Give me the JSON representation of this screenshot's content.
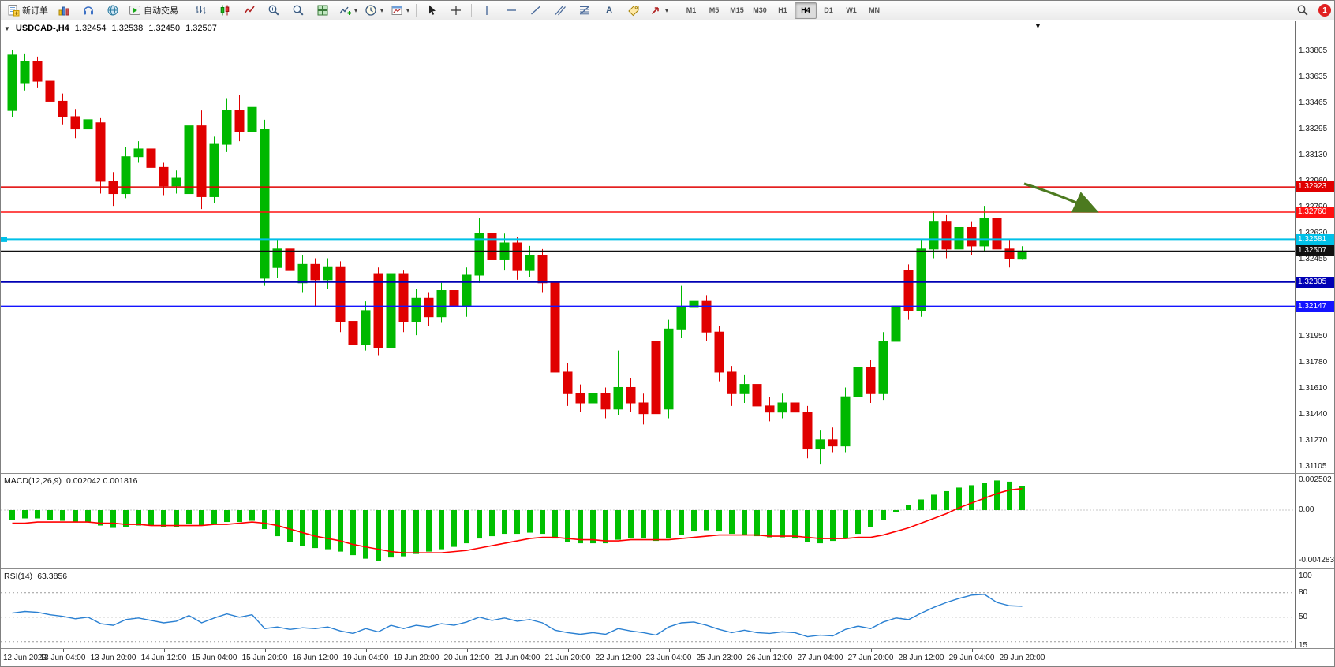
{
  "toolbar": {
    "new_order_label": "新订单",
    "auto_trading_label": "自动交易",
    "timeframes": [
      "M1",
      "M5",
      "M15",
      "M30",
      "H1",
      "H4",
      "D1",
      "W1",
      "MN"
    ],
    "active_timeframe": "H4",
    "notification_count": "1"
  },
  "icons": {
    "caret": "▾",
    "dropdown_triangle": "▼",
    "chart_shift_marker": "▼",
    "text_tool": "A"
  },
  "chart": {
    "symbol_title": "USDCAD-,H4",
    "ohlc": {
      "open": "1.32454",
      "high": "1.32538",
      "low": "1.32450",
      "close": "1.32507"
    },
    "up_color": "#00b800",
    "down_color": "#e00000",
    "price_axis_labels": [
      "1.33805",
      "1.33635",
      "1.33465",
      "1.33295",
      "1.33130",
      "1.32960",
      "1.32790",
      "1.32620",
      "1.32455",
      "1.32285",
      "1.32115",
      "1.31950",
      "1.31780",
      "1.31610",
      "1.31440",
      "1.31270",
      "1.31105"
    ],
    "hlines": [
      {
        "price": 1.32923,
        "label": "1.32923",
        "color": "#e00000",
        "width": 1.5
      },
      {
        "price": 1.3276,
        "label": "1.32760",
        "color": "#ff1010",
        "width": 1.5
      },
      {
        "price": 1.32581,
        "label": "1.32581",
        "color": "#00c0e8",
        "width": 3
      },
      {
        "price": 1.32507,
        "label": "1.32507",
        "color": "#101010",
        "width": 1.2,
        "current": true
      },
      {
        "price": 1.32305,
        "label": "1.32305",
        "color": "#0000b4",
        "width": 2
      },
      {
        "price": 1.32147,
        "label": "1.32147",
        "color": "#1414ff",
        "width": 2
      }
    ]
  },
  "indicators": {
    "macd": {
      "name": "MACD(12,26,9)",
      "values": "0.002042 0.001816",
      "scale": [
        "0.002502",
        "0.00",
        "-0.004283"
      ],
      "histogram_color": "#00c000",
      "signal_color": "#ff0000"
    },
    "rsi": {
      "name": "RSI(14)",
      "value": "63.3856",
      "scale": [
        "100",
        "80",
        "50",
        "15"
      ],
      "levels": [
        80,
        50,
        20
      ],
      "line_color": "#2a80d2"
    }
  },
  "annotations": {
    "arrow_color": "#4c7a1f"
  },
  "chart_data": {
    "type": "candlestick",
    "symbol": "USDCAD",
    "timeframe": "H4",
    "ohlc_current": {
      "open": 1.32454,
      "high": 1.32538,
      "low": 1.3245,
      "close": 1.32507
    },
    "time_labels": [
      "12 Jun 2023",
      "13 Jun 04:00",
      "13 Jun 20:00",
      "14 Jun 12:00",
      "15 Jun 04:00",
      "15 Jun 20:00",
      "16 Jun 12:00",
      "19 Jun 04:00",
      "19 Jun 20:00",
      "20 Jun 12:00",
      "21 Jun 04:00",
      "21 Jun 20:00",
      "22 Jun 12:00",
      "23 Jun 04:00",
      "25 Jun 23:00",
      "26 Jun 12:00",
      "27 Jun 04:00",
      "27 Jun 20:00",
      "28 Jun 12:00",
      "29 Jun 04:00",
      "29 Jun 20:00"
    ],
    "candles": [
      [
        1.3342,
        1.3381,
        1.3338,
        1.3378
      ],
      [
        1.336,
        1.3379,
        1.3355,
        1.3374
      ],
      [
        1.3374,
        1.3377,
        1.3357,
        1.3361
      ],
      [
        1.3361,
        1.3364,
        1.3343,
        1.3348
      ],
      [
        1.3348,
        1.3353,
        1.3333,
        1.3338
      ],
      [
        1.3338,
        1.3343,
        1.3324,
        1.333
      ],
      [
        1.333,
        1.3341,
        1.3326,
        1.3336
      ],
      [
        1.3334,
        1.3337,
        1.3288,
        1.3296
      ],
      [
        1.3296,
        1.3302,
        1.328,
        1.3288
      ],
      [
        1.3288,
        1.3318,
        1.3285,
        1.3312
      ],
      [
        1.3312,
        1.3322,
        1.3308,
        1.3317
      ],
      [
        1.3317,
        1.332,
        1.33,
        1.3305
      ],
      [
        1.3305,
        1.3308,
        1.3287,
        1.3293
      ],
      [
        1.3293,
        1.3303,
        1.3288,
        1.3298
      ],
      [
        1.3288,
        1.3338,
        1.3284,
        1.3332
      ],
      [
        1.3332,
        1.3342,
        1.3278,
        1.3286
      ],
      [
        1.3286,
        1.3325,
        1.3282,
        1.332
      ],
      [
        1.332,
        1.335,
        1.3315,
        1.3342
      ],
      [
        1.3342,
        1.3352,
        1.3322,
        1.3328
      ],
      [
        1.3328,
        1.335,
        1.3324,
        1.3344
      ],
      [
        1.3233,
        1.3336,
        1.3228,
        1.333
      ],
      [
        1.324,
        1.3258,
        1.3233,
        1.3252
      ],
      [
        1.3252,
        1.3256,
        1.3228,
        1.3238
      ],
      [
        1.323,
        1.3248,
        1.3224,
        1.3242
      ],
      [
        1.3242,
        1.3246,
        1.3215,
        1.3232
      ],
      [
        1.3232,
        1.3246,
        1.3226,
        1.324
      ],
      [
        1.324,
        1.3244,
        1.3198,
        1.3205
      ],
      [
        1.3205,
        1.321,
        1.318,
        1.319
      ],
      [
        1.319,
        1.3218,
        1.3186,
        1.3212
      ],
      [
        1.3236,
        1.324,
        1.3183,
        1.3188
      ],
      [
        1.3188,
        1.324,
        1.3184,
        1.3236
      ],
      [
        1.3236,
        1.3238,
        1.3198,
        1.3205
      ],
      [
        1.3205,
        1.3226,
        1.3196,
        1.322
      ],
      [
        1.322,
        1.3224,
        1.3202,
        1.3208
      ],
      [
        1.3208,
        1.323,
        1.3204,
        1.3225
      ],
      [
        1.3225,
        1.3233,
        1.321,
        1.3215
      ],
      [
        1.3215,
        1.324,
        1.3208,
        1.3235
      ],
      [
        1.3235,
        1.3272,
        1.323,
        1.3262
      ],
      [
        1.3262,
        1.3266,
        1.324,
        1.3245
      ],
      [
        1.3245,
        1.3262,
        1.3238,
        1.3256
      ],
      [
        1.3256,
        1.326,
        1.3232,
        1.3238
      ],
      [
        1.3238,
        1.3254,
        1.3234,
        1.3248
      ],
      [
        1.3248,
        1.3252,
        1.3224,
        1.323
      ],
      [
        1.323,
        1.3236,
        1.3165,
        1.3172
      ],
      [
        1.3172,
        1.3178,
        1.315,
        1.3158
      ],
      [
        1.3158,
        1.3164,
        1.3146,
        1.3152
      ],
      [
        1.3152,
        1.3163,
        1.3147,
        1.3158
      ],
      [
        1.3158,
        1.3162,
        1.3142,
        1.3148
      ],
      [
        1.3148,
        1.3186,
        1.3144,
        1.3162
      ],
      [
        1.3162,
        1.3168,
        1.3146,
        1.3152
      ],
      [
        1.3152,
        1.3158,
        1.3138,
        1.3145
      ],
      [
        1.3192,
        1.3196,
        1.314,
        1.3145
      ],
      [
        1.3148,
        1.3206,
        1.3142,
        1.32
      ],
      [
        1.32,
        1.3228,
        1.3194,
        1.3214
      ],
      [
        1.3214,
        1.3224,
        1.3208,
        1.3218
      ],
      [
        1.3218,
        1.3222,
        1.3192,
        1.3198
      ],
      [
        1.3198,
        1.3202,
        1.3166,
        1.3172
      ],
      [
        1.3172,
        1.3176,
        1.315,
        1.3158
      ],
      [
        1.3158,
        1.317,
        1.3152,
        1.3164
      ],
      [
        1.3164,
        1.3168,
        1.3144,
        1.315
      ],
      [
        1.315,
        1.3156,
        1.314,
        1.3146
      ],
      [
        1.3146,
        1.3158,
        1.3142,
        1.3152
      ],
      [
        1.3152,
        1.3156,
        1.3138,
        1.3146
      ],
      [
        1.3146,
        1.315,
        1.3116,
        1.3122
      ],
      [
        1.3122,
        1.3134,
        1.3112,
        1.3128
      ],
      [
        1.3128,
        1.3136,
        1.312,
        1.3124
      ],
      [
        1.3124,
        1.3162,
        1.312,
        1.3156
      ],
      [
        1.3156,
        1.318,
        1.315,
        1.3175
      ],
      [
        1.3175,
        1.318,
        1.3152,
        1.3158
      ],
      [
        1.3158,
        1.3198,
        1.3154,
        1.3192
      ],
      [
        1.3192,
        1.3222,
        1.3186,
        1.3215
      ],
      [
        1.3238,
        1.3242,
        1.3206,
        1.3212
      ],
      [
        1.3212,
        1.3258,
        1.3208,
        1.3252
      ],
      [
        1.3252,
        1.3277,
        1.3246,
        1.327
      ],
      [
        1.327,
        1.3274,
        1.3246,
        1.3252
      ],
      [
        1.3252,
        1.3272,
        1.3248,
        1.3266
      ],
      [
        1.3266,
        1.327,
        1.3248,
        1.3254
      ],
      [
        1.3254,
        1.328,
        1.325,
        1.3272
      ],
      [
        1.3272,
        1.3293,
        1.3246,
        1.3252
      ],
      [
        1.3252,
        1.3258,
        1.324,
        1.3246
      ],
      [
        1.32454,
        1.32538,
        1.3245,
        1.32507
      ]
    ],
    "macd_histogram": [
      -0.0008,
      -0.0007,
      -0.0007,
      -0.0008,
      -0.0009,
      -0.001,
      -0.001,
      -0.0013,
      -0.0015,
      -0.0014,
      -0.0013,
      -0.0013,
      -0.0014,
      -0.0014,
      -0.0012,
      -0.0013,
      -0.0012,
      -0.001,
      -0.001,
      -0.0009,
      -0.0016,
      -0.0022,
      -0.0027,
      -0.003,
      -0.0032,
      -0.0033,
      -0.0035,
      -0.0038,
      -0.0041,
      -0.00428,
      -0.004,
      -0.0039,
      -0.0037,
      -0.0035,
      -0.0033,
      -0.0031,
      -0.0028,
      -0.0024,
      -0.0022,
      -0.002,
      -0.002,
      -0.0019,
      -0.002,
      -0.0024,
      -0.0027,
      -0.0028,
      -0.0028,
      -0.0028,
      -0.0025,
      -0.0024,
      -0.0024,
      -0.0026,
      -0.0024,
      -0.0021,
      -0.0018,
      -0.0017,
      -0.0018,
      -0.002,
      -0.0021,
      -0.0022,
      -0.0023,
      -0.0023,
      -0.0024,
      -0.0027,
      -0.0028,
      -0.0026,
      -0.0024,
      -0.002,
      -0.0014,
      -0.0008,
      -0.0002,
      0.0004,
      0.0009,
      0.0013,
      0.0016,
      0.0019,
      0.0021,
      0.0023,
      0.0025,
      0.0024,
      0.002042
    ],
    "macd_signal": [
      -0.0011,
      -0.0011,
      -0.001,
      -0.001,
      -0.001,
      -0.001,
      -0.001,
      -0.0011,
      -0.0011,
      -0.0012,
      -0.0012,
      -0.0013,
      -0.0013,
      -0.0013,
      -0.0013,
      -0.0013,
      -0.0012,
      -0.0012,
      -0.0011,
      -0.001,
      -0.0011,
      -0.0013,
      -0.0016,
      -0.0019,
      -0.0022,
      -0.0024,
      -0.0026,
      -0.0029,
      -0.0031,
      -0.0033,
      -0.0035,
      -0.0036,
      -0.0036,
      -0.0036,
      -0.0036,
      -0.0035,
      -0.0034,
      -0.0032,
      -0.003,
      -0.0028,
      -0.0026,
      -0.0024,
      -0.0023,
      -0.0023,
      -0.0024,
      -0.0025,
      -0.0025,
      -0.0026,
      -0.0026,
      -0.0025,
      -0.0025,
      -0.0025,
      -0.0025,
      -0.0024,
      -0.0023,
      -0.0022,
      -0.0021,
      -0.0021,
      -0.0021,
      -0.0021,
      -0.0022,
      -0.0022,
      -0.0022,
      -0.0023,
      -0.0024,
      -0.0024,
      -0.0024,
      -0.0023,
      -0.0023,
      -0.0021,
      -0.0018,
      -0.0015,
      -0.0011,
      -0.0007,
      -0.0003,
      0.0002,
      0.0006,
      0.001,
      0.0014,
      0.0017,
      0.001816
    ],
    "rsi": [
      55,
      57,
      56,
      53,
      51,
      48,
      50,
      42,
      40,
      47,
      49,
      46,
      43,
      45,
      52,
      43,
      49,
      54,
      50,
      53,
      36,
      38,
      35,
      37,
      36,
      38,
      33,
      30,
      36,
      32,
      40,
      36,
      40,
      38,
      42,
      40,
      44,
      50,
      46,
      49,
      45,
      47,
      43,
      34,
      31,
      29,
      31,
      29,
      36,
      33,
      31,
      28,
      38,
      43,
      44,
      40,
      35,
      31,
      34,
      31,
      30,
      32,
      31,
      26,
      28,
      27,
      35,
      39,
      36,
      44,
      49,
      47,
      55,
      62,
      68,
      73,
      77,
      78,
      68,
      64,
      63.3856
    ]
  }
}
